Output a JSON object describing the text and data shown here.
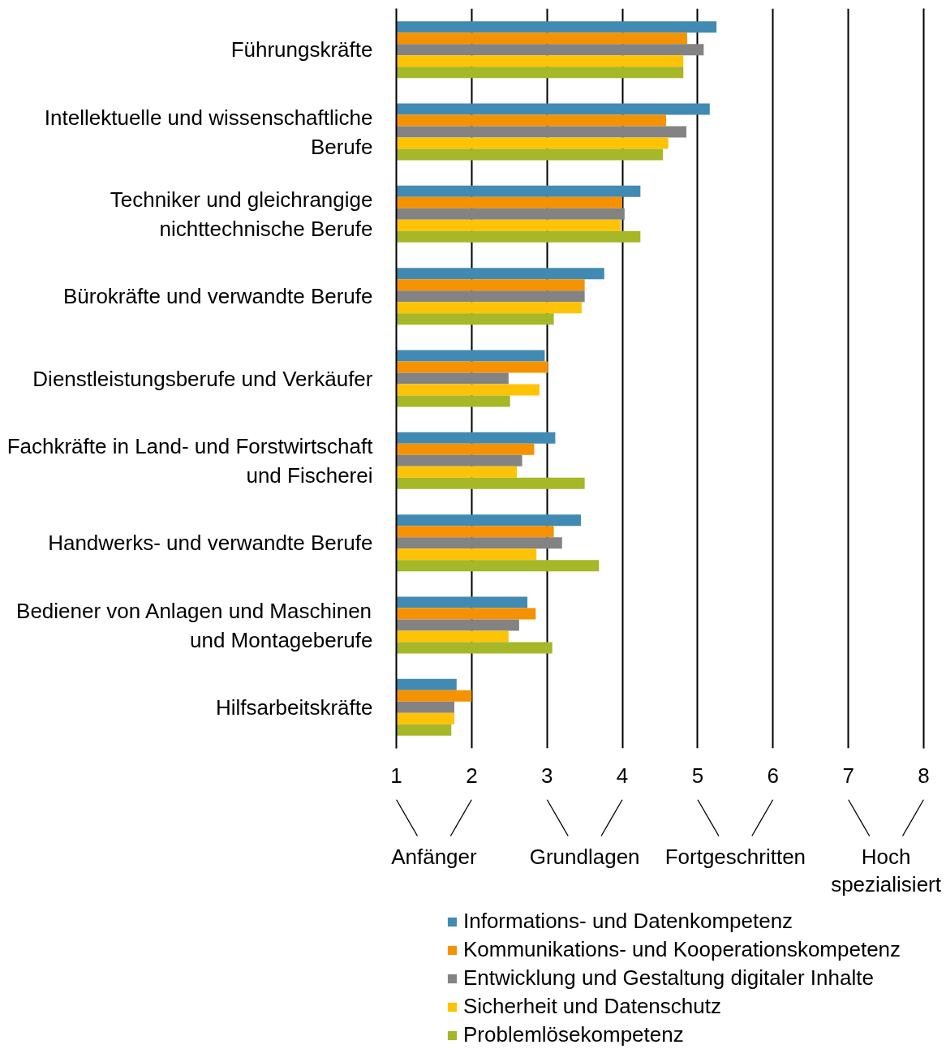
{
  "chart_data": {
    "type": "bar",
    "orientation": "horizontal",
    "categories": [
      "Führungskräfte",
      "Intellektuelle und wissenschaftliche Berufe",
      "Techniker und gleichrangige nichttechnische Berufe",
      "Bürokräfte und verwandte Berufe",
      "Dienstleistungsberufe und Verkäufer",
      "Fachkräfte in Land- und Forstwirtschaft und Fischerei",
      "Handwerks- und verwandte Berufe",
      "Bediener von Anlagen und Maschinen und Montageberufe",
      "Hilfsarbeitskräfte"
    ],
    "series": [
      {
        "name": "Informations- und Datenkompetenz",
        "color": "#418ab3",
        "values": [
          5.25,
          5.16,
          4.24,
          3.76,
          2.97,
          3.11,
          3.45,
          2.74,
          1.8
        ]
      },
      {
        "name": "Kommunikations- und Kooperationskompetenz",
        "color": "#f59201",
        "values": [
          4.86,
          4.58,
          4.0,
          3.5,
          3.01,
          2.83,
          3.09,
          2.85,
          2.0
        ]
      },
      {
        "name": "Entwicklung und Gestaltung digitaler Inhalte",
        "color": "#838383",
        "values": [
          5.08,
          4.85,
          4.03,
          3.5,
          2.49,
          2.67,
          3.2,
          2.63,
          1.77
        ]
      },
      {
        "name": "Sicherheit und Datenschutz",
        "color": "#fec306",
        "values": [
          4.81,
          4.61,
          3.98,
          3.46,
          2.9,
          2.6,
          2.86,
          2.49,
          1.77
        ]
      },
      {
        "name": "Problemlösekompetenz",
        "color": "#a6b727",
        "values": [
          4.81,
          4.54,
          4.24,
          3.09,
          2.51,
          3.5,
          3.69,
          3.07,
          1.73
        ]
      }
    ],
    "xlim": [
      1,
      8
    ],
    "xticks": [
      1,
      2,
      3,
      4,
      5,
      6,
      7,
      8
    ],
    "grid": "x",
    "legend": "bottom",
    "annotations": [
      "Anfänger",
      "Grundlagen",
      "Fortgeschritten",
      "Hoch spezialisiert"
    ]
  }
}
